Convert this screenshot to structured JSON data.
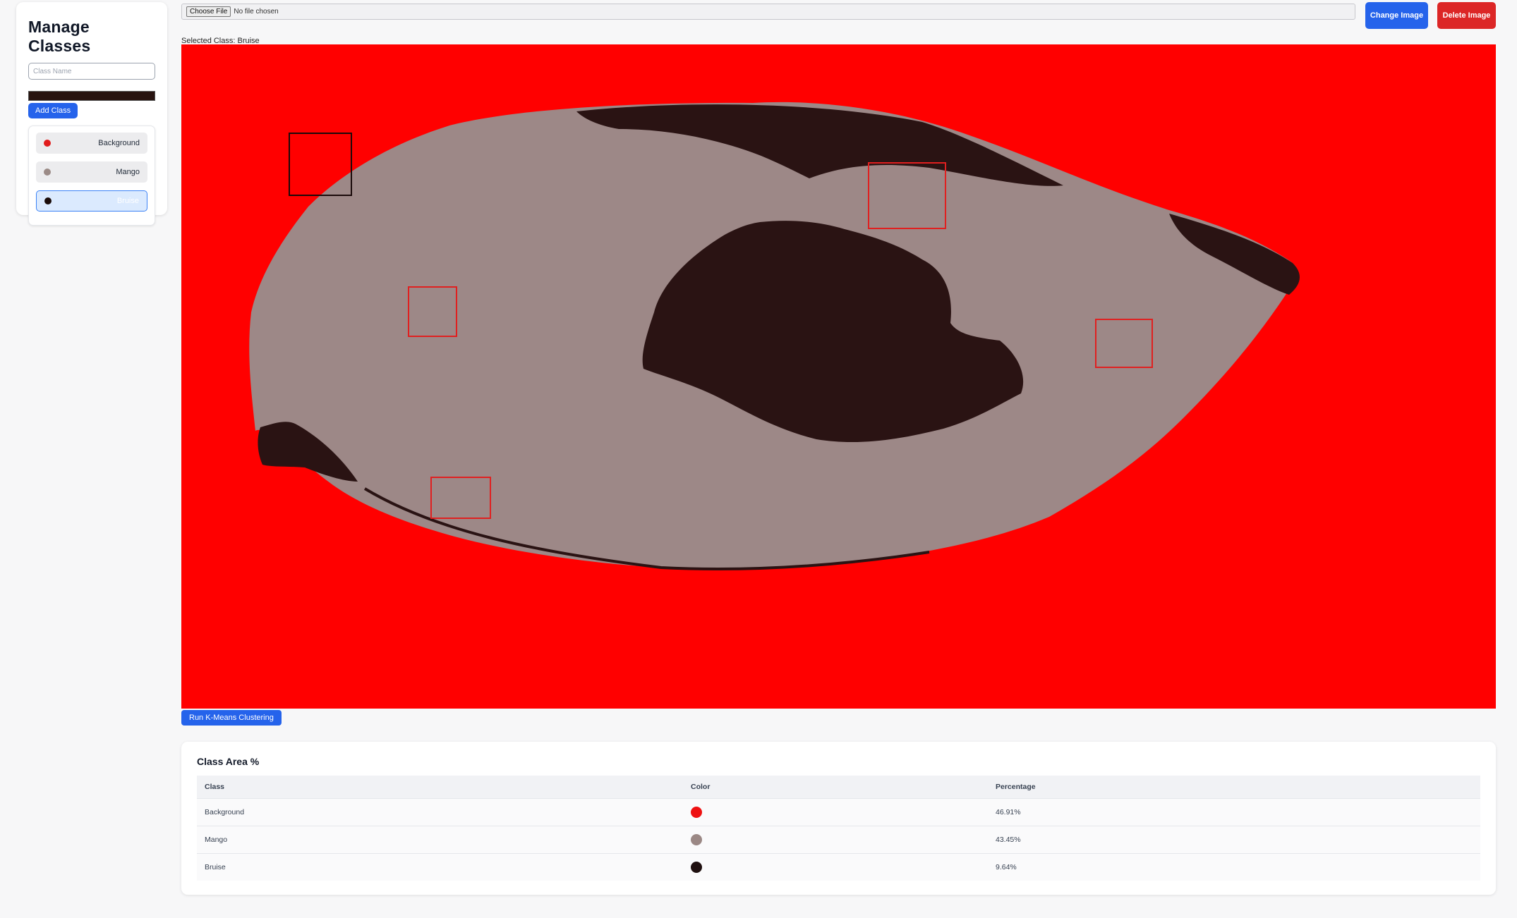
{
  "sidebar": {
    "title": "Manage Classes",
    "class_name_placeholder": "Class Name",
    "current_color": "#281410",
    "add_button": "Add Class",
    "classes": [
      {
        "label": "Background",
        "color": "#e11d1d",
        "selected": false
      },
      {
        "label": "Mango",
        "color": "#9b8b87",
        "selected": false
      },
      {
        "label": "Bruise",
        "color": "#1a0c0a",
        "selected": true
      }
    ]
  },
  "topbar": {
    "choose_file": "Choose File",
    "no_file": "No file chosen",
    "change_image": "Change Image",
    "delete_image": "Delete Image"
  },
  "selected_class_text": "Selected Class: Bruise",
  "canvas": {
    "background_color": "#ff0000",
    "mango_color": "#9d8887",
    "bruise_color": "#2a1313"
  },
  "run_button": "Run K-Means Clustering",
  "area_table": {
    "title": "Class Area %",
    "headers": [
      "Class",
      "Color",
      "Percentage"
    ],
    "rows": [
      {
        "class": "Background",
        "color": "#ee1111",
        "percentage": "46.91%"
      },
      {
        "class": "Mango",
        "color": "#9b8885",
        "percentage": "43.45%"
      },
      {
        "class": "Bruise",
        "color": "#1f1010",
        "percentage": "9.64%"
      }
    ]
  }
}
